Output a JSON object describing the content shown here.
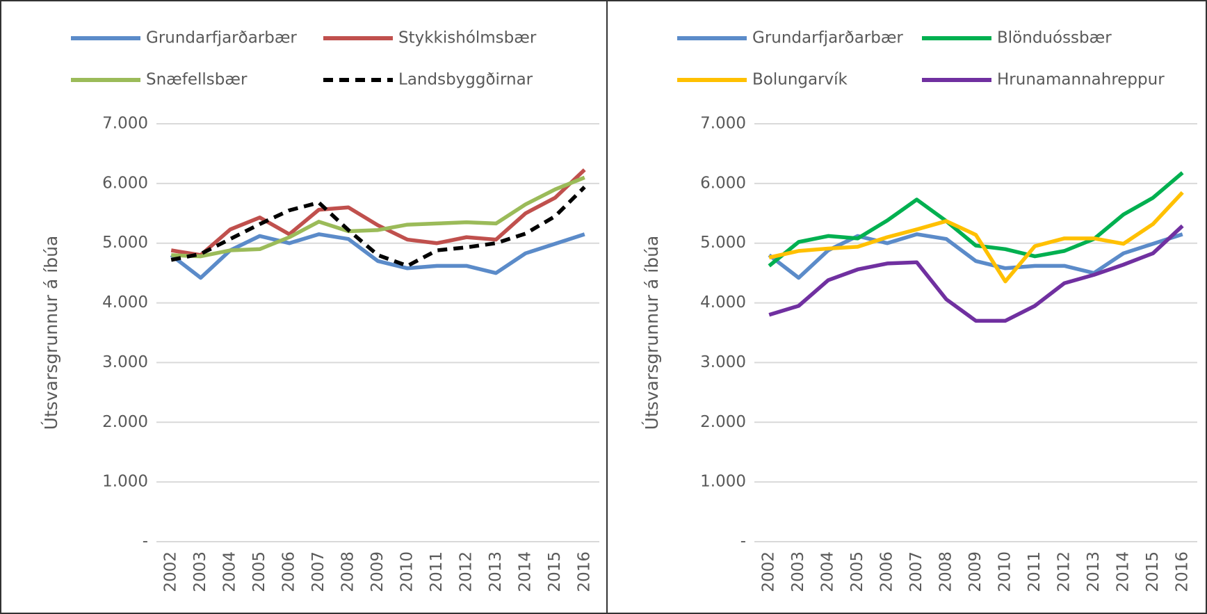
{
  "chart_data": [
    {
      "type": "line",
      "y_label": "Útsvarsgrunnur á íbúa",
      "categories": [
        "2002",
        "2003",
        "2004",
        "2005",
        "2006",
        "2007",
        "2008",
        "2009",
        "2010",
        "2011",
        "2012",
        "2013",
        "2014",
        "2015",
        "2016"
      ],
      "ylim": [
        0,
        7000
      ],
      "yticks": [
        {
          "value": 0,
          "label": "-"
        },
        {
          "value": 1000,
          "label": "1.000"
        },
        {
          "value": 2000,
          "label": "2.000"
        },
        {
          "value": 3000,
          "label": "3.000"
        },
        {
          "value": 4000,
          "label": "4.000"
        },
        {
          "value": 5000,
          "label": "5.000"
        },
        {
          "value": 6000,
          "label": "6.000"
        },
        {
          "value": 7000,
          "label": "7.000"
        }
      ],
      "grid": true,
      "legend": "top",
      "series": [
        {
          "name": "Grundarfjarðarbær",
          "color": "#5b8bc9",
          "values": [
            4800,
            4420,
            4880,
            5120,
            5000,
            5150,
            5070,
            4700,
            4580,
            4620,
            4620,
            4500,
            4830,
            4990,
            5150
          ]
        },
        {
          "name": "Stykkishólmsbær",
          "color": "#c0504d",
          "values": [
            4880,
            4800,
            5230,
            5430,
            5150,
            5560,
            5600,
            5300,
            5060,
            5000,
            5100,
            5060,
            5500,
            5760,
            6230
          ]
        },
        {
          "name": "Snæfellsbær",
          "color": "#9bbb59",
          "values": [
            4800,
            4780,
            4880,
            4900,
            5100,
            5360,
            5200,
            5220,
            5310,
            5330,
            5350,
            5330,
            5650,
            5900,
            6100
          ]
        },
        {
          "name": "Landsbyggðirnar",
          "color": "#000000",
          "line_style": "dashed",
          "values": [
            4720,
            4820,
            5070,
            5320,
            5550,
            5680,
            5220,
            4800,
            4620,
            4880,
            4930,
            5000,
            5160,
            5450,
            5940
          ]
        }
      ]
    },
    {
      "type": "line",
      "y_label": "Útsvarsgrunnur á íbúa",
      "categories": [
        "2002",
        "2003",
        "2004",
        "2005",
        "2006",
        "2007",
        "2008",
        "2009",
        "2010",
        "2011",
        "2012",
        "2013",
        "2014",
        "2015",
        "2016"
      ],
      "ylim": [
        0,
        7000
      ],
      "yticks": [
        {
          "value": 0,
          "label": "-"
        },
        {
          "value": 1000,
          "label": "1.000"
        },
        {
          "value": 2000,
          "label": "2.000"
        },
        {
          "value": 3000,
          "label": "3.000"
        },
        {
          "value": 4000,
          "label": "4.000"
        },
        {
          "value": 5000,
          "label": "5.000"
        },
        {
          "value": 6000,
          "label": "6.000"
        },
        {
          "value": 7000,
          "label": "7.000"
        }
      ],
      "grid": true,
      "legend": "top",
      "series": [
        {
          "name": "Grundarfjarðarbær",
          "color": "#5b8bc9",
          "values": [
            4800,
            4420,
            4880,
            5120,
            5000,
            5150,
            5070,
            4700,
            4580,
            4620,
            4620,
            4500,
            4830,
            4990,
            5150
          ]
        },
        {
          "name": "Blönduóssbær",
          "color": "#00b050",
          "values": [
            4620,
            5020,
            5120,
            5080,
            5380,
            5730,
            5370,
            4960,
            4900,
            4780,
            4870,
            5070,
            5480,
            5760,
            6180
          ]
        },
        {
          "name": "Bolungarvík",
          "color": "#ffc000",
          "values": [
            4760,
            4870,
            4910,
            4940,
            5100,
            5230,
            5370,
            5140,
            4360,
            4950,
            5080,
            5080,
            4990,
            5320,
            5850
          ]
        },
        {
          "name": "Hrunamannahreppur",
          "color": "#7030a0",
          "values": [
            3800,
            3950,
            4380,
            4560,
            4660,
            4680,
            4060,
            3700,
            3700,
            3950,
            4330,
            4470,
            4640,
            4830,
            5290
          ]
        }
      ]
    }
  ]
}
